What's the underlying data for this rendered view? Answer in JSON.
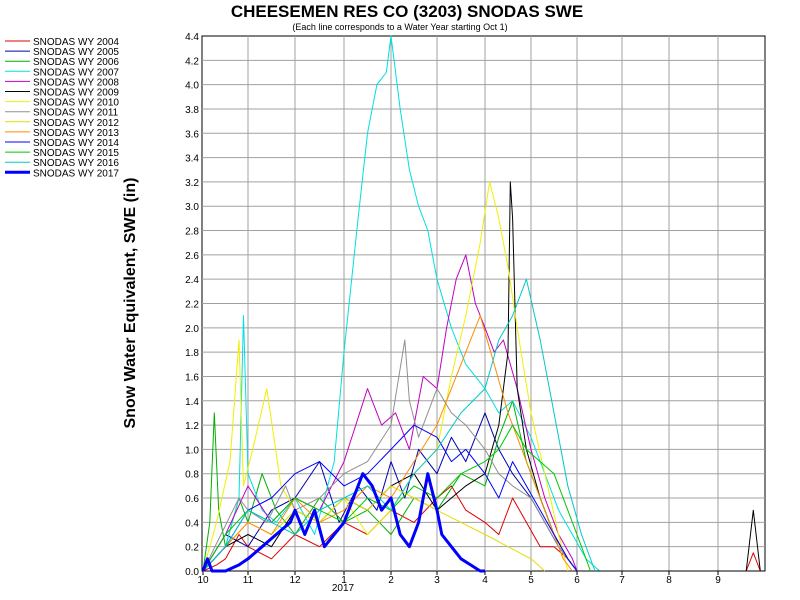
{
  "chart_data": {
    "type": "line",
    "title": "CHEESEMEN RES CO (3203) SNODAS SWE",
    "subtitle": "(Each line corresponds to a Water Year starting Oct 1)",
    "xlabel": "",
    "ylabel": "Snow Water Equivalent, SWE (in)",
    "x_tick_labels": [
      "10",
      "11",
      "12",
      "1",
      "2",
      "3",
      "4",
      "5",
      "6",
      "7",
      "8",
      "9"
    ],
    "x_year_label": "2017",
    "ylim": [
      0,
      4.4
    ],
    "y_ticks": [
      0.0,
      0.2,
      0.4,
      0.6,
      0.8,
      1.0,
      1.2,
      1.4,
      1.6,
      1.8,
      2.0,
      2.2,
      2.4,
      2.6,
      2.8,
      3.0,
      3.2,
      3.4,
      3.6,
      3.8,
      4.0,
      4.2,
      4.4
    ],
    "grid": true,
    "legend_position": "left",
    "series": [
      {
        "name": "SNODAS WY 2004",
        "color": "#e00000",
        "width": 1,
        "x": [
          10.0,
          10.3,
          10.5,
          10.8,
          11.0,
          11.5,
          12.0,
          12.5,
          1.0,
          1.5,
          2.0,
          2.5,
          3.0,
          3.3,
          3.6,
          4.0,
          4.3,
          4.6,
          4.9,
          5.2,
          5.5,
          5.8,
          6.0,
          9.6,
          9.75,
          9.9
        ],
        "y": [
          0,
          0.05,
          0.1,
          0.3,
          0.2,
          0.1,
          0.3,
          0.2,
          0.4,
          0.3,
          0.5,
          0.4,
          0.6,
          0.7,
          0.5,
          0.4,
          0.3,
          0.6,
          0.4,
          0.2,
          0.2,
          0.1,
          0,
          0,
          0.15,
          0
        ]
      },
      {
        "name": "SNODAS WY 2005",
        "color": "#0000b0",
        "width": 1,
        "x": [
          10.0,
          10.5,
          11.0,
          11.5,
          12.0,
          12.5,
          12.9,
          1.3,
          1.7,
          2.0,
          2.3,
          2.6,
          3.0,
          3.3,
          3.6,
          4.0,
          4.3,
          4.6,
          5.0,
          5.3,
          5.6,
          5.9,
          6.0
        ],
        "y": [
          0,
          0.3,
          0.2,
          0.5,
          0.6,
          0.9,
          0.4,
          0.7,
          0.5,
          0.9,
          0.6,
          1.0,
          0.8,
          1.1,
          0.9,
          1.3,
          1.0,
          0.8,
          0.6,
          0.4,
          0.2,
          0.05,
          0
        ]
      },
      {
        "name": "SNODAS WY 2006",
        "color": "#00b000",
        "width": 1,
        "x": [
          10.0,
          10.15,
          10.25,
          10.35,
          10.5,
          10.8,
          11.0,
          11.3,
          11.6,
          12.0,
          12.5,
          1.0,
          1.5,
          2.0,
          2.5,
          3.0,
          3.5,
          4.0,
          4.3,
          4.6,
          4.9,
          5.2,
          5.5,
          5.8,
          6.0
        ],
        "y": [
          0,
          0.4,
          1.3,
          0.5,
          0.2,
          0.6,
          0.4,
          0.8,
          0.5,
          0.3,
          0.6,
          0.4,
          0.5,
          0.3,
          0.6,
          0.5,
          0.8,
          0.7,
          1.1,
          1.4,
          0.9,
          0.6,
          0.3,
          0.1,
          0
        ]
      },
      {
        "name": "SNODAS WY 2007",
        "color": "#00e0e0",
        "width": 1,
        "x": [
          10.0,
          10.5,
          10.8,
          10.9,
          11.0,
          11.3,
          11.6,
          12.0,
          12.4,
          12.8,
          1.0,
          1.3,
          1.5,
          1.7,
          1.9,
          2.0,
          2.2,
          2.4,
          2.6,
          2.8,
          3.0,
          3.3,
          3.6,
          4.0,
          4.3,
          4.6,
          5.0,
          5.3,
          5.6,
          5.9,
          6.2,
          6.5
        ],
        "y": [
          0,
          0.2,
          0.6,
          2.1,
          0.8,
          0.5,
          0.4,
          0.6,
          0.3,
          0.9,
          1.8,
          2.9,
          3.6,
          4.0,
          4.1,
          4.4,
          3.8,
          3.3,
          3.0,
          2.8,
          2.4,
          2.0,
          1.7,
          1.5,
          1.3,
          1.4,
          1.1,
          0.8,
          0.5,
          0.3,
          0.1,
          0
        ]
      },
      {
        "name": "SNODAS WY 2008",
        "color": "#c000c0",
        "width": 1,
        "x": [
          10.0,
          10.5,
          11.0,
          11.5,
          12.0,
          12.5,
          1.0,
          1.5,
          1.8,
          2.1,
          2.4,
          2.7,
          3.0,
          3.2,
          3.4,
          3.6,
          3.8,
          4.0,
          4.2,
          4.4,
          4.7,
          5.0,
          5.3,
          5.6,
          5.9,
          6.0
        ],
        "y": [
          0,
          0.3,
          0.7,
          0.4,
          0.6,
          0.5,
          0.9,
          1.5,
          1.2,
          1.3,
          1.0,
          1.6,
          1.5,
          2.0,
          2.4,
          2.6,
          2.2,
          2.0,
          1.8,
          1.9,
          1.5,
          1.0,
          0.6,
          0.3,
          0.1,
          0
        ]
      },
      {
        "name": "SNODAS WY 2009",
        "color": "#000000",
        "width": 1,
        "x": [
          10.0,
          10.5,
          11.0,
          11.5,
          12.0,
          12.5,
          1.0,
          1.5,
          2.0,
          2.5,
          3.0,
          3.3,
          3.6,
          4.0,
          4.3,
          4.5,
          4.55,
          4.6,
          4.7,
          4.9,
          5.2,
          5.5,
          5.8,
          6.0,
          9.6,
          9.75,
          9.9
        ],
        "y": [
          0,
          0.2,
          0.3,
          0.2,
          0.5,
          0.4,
          0.6,
          0.5,
          0.7,
          0.8,
          0.5,
          0.6,
          0.7,
          0.8,
          1.2,
          1.8,
          3.2,
          2.9,
          1.5,
          1.0,
          0.6,
          0.3,
          0.1,
          0,
          0,
          0.5,
          0
        ]
      },
      {
        "name": "SNODAS WY 2010",
        "color": "#f0f000",
        "width": 1,
        "x": [
          10.0,
          10.3,
          10.6,
          10.8,
          10.9,
          11.1,
          11.4,
          11.7,
          12.0,
          12.5,
          1.0,
          1.5,
          2.0,
          2.5,
          3.0,
          3.3,
          3.6,
          3.9,
          4.1,
          4.3,
          4.5,
          4.7,
          5.0,
          5.3,
          5.6,
          5.8
        ],
        "y": [
          0,
          0.4,
          0.9,
          1.9,
          0.7,
          1.0,
          1.5,
          0.7,
          0.5,
          0.4,
          0.6,
          0.3,
          0.5,
          0.8,
          1.0,
          1.6,
          2.1,
          2.7,
          3.2,
          2.9,
          2.5,
          2.0,
          1.3,
          0.8,
          0.3,
          0
        ]
      },
      {
        "name": "SNODAS WY 2011",
        "color": "#909090",
        "width": 1,
        "x": [
          10.0,
          10.4,
          10.8,
          11.0,
          11.4,
          11.8,
          12.0,
          12.5,
          1.0,
          1.5,
          2.0,
          2.3,
          2.4,
          2.6,
          3.0,
          3.3,
          3.6,
          4.0,
          4.3,
          4.6,
          5.0,
          5.3,
          5.6,
          5.9,
          6.0
        ],
        "y": [
          0,
          0.3,
          0.6,
          0.5,
          0.4,
          0.7,
          0.5,
          0.6,
          0.8,
          0.9,
          1.2,
          1.9,
          1.4,
          1.1,
          1.5,
          1.3,
          1.2,
          1.0,
          0.8,
          0.7,
          0.6,
          0.4,
          0.2,
          0.05,
          0
        ]
      },
      {
        "name": "SNODAS WY 2012",
        "color": "#e0e000",
        "width": 1,
        "x": [
          10.0,
          10.5,
          11.0,
          11.5,
          12.0,
          12.5,
          1.0,
          1.5,
          2.0,
          2.5,
          3.0,
          3.5,
          4.0,
          4.5,
          5.0,
          5.3
        ],
        "y": [
          0,
          0.2,
          0.4,
          0.3,
          0.5,
          0.4,
          0.6,
          0.5,
          0.7,
          0.6,
          0.5,
          0.4,
          0.3,
          0.2,
          0.1,
          0
        ]
      },
      {
        "name": "SNODAS WY 2013",
        "color": "#ff8c00",
        "width": 1,
        "x": [
          10.0,
          10.5,
          11.0,
          11.5,
          12.0,
          12.5,
          1.0,
          1.5,
          2.0,
          2.5,
          3.0,
          3.3,
          3.6,
          3.9,
          4.2,
          4.5,
          4.8,
          5.1,
          5.4,
          5.7,
          5.9
        ],
        "y": [
          0,
          0.2,
          0.4,
          0.3,
          0.6,
          0.4,
          0.5,
          0.7,
          0.6,
          0.9,
          1.2,
          1.5,
          1.8,
          2.1,
          1.7,
          1.3,
          1.0,
          0.7,
          0.4,
          0.1,
          0
        ]
      },
      {
        "name": "SNODAS WY 2014",
        "color": "#0000ff",
        "width": 1,
        "x": [
          10.0,
          10.5,
          11.0,
          11.5,
          12.0,
          12.5,
          1.0,
          1.5,
          2.0,
          2.5,
          3.0,
          3.3,
          3.6,
          4.0,
          4.3,
          4.6,
          4.9,
          5.2,
          5.5,
          5.8,
          6.0
        ],
        "y": [
          0,
          0.2,
          0.5,
          0.6,
          0.8,
          0.9,
          0.7,
          0.8,
          1.0,
          1.2,
          1.1,
          0.9,
          1.0,
          0.8,
          0.6,
          0.9,
          0.7,
          0.5,
          0.3,
          0.1,
          0
        ]
      },
      {
        "name": "SNODAS WY 2015",
        "color": "#00c800",
        "width": 1,
        "x": [
          10.0,
          10.5,
          11.0,
          11.5,
          12.0,
          12.5,
          1.0,
          1.5,
          2.0,
          2.5,
          3.0,
          3.5,
          4.0,
          4.3,
          4.6,
          4.9,
          5.2,
          5.5,
          5.8,
          6.1,
          6.3
        ],
        "y": [
          0,
          0.3,
          0.5,
          0.4,
          0.6,
          0.5,
          0.4,
          0.6,
          0.5,
          0.7,
          0.6,
          0.8,
          0.9,
          1.0,
          1.2,
          1.0,
          0.9,
          0.8,
          0.5,
          0.2,
          0
        ]
      },
      {
        "name": "SNODAS WY 2016",
        "color": "#00c8c8",
        "width": 1,
        "x": [
          10.0,
          10.5,
          11.0,
          11.5,
          12.0,
          12.5,
          1.0,
          1.5,
          2.0,
          2.5,
          3.0,
          3.5,
          4.0,
          4.3,
          4.6,
          4.9,
          5.2,
          5.5,
          5.8,
          6.1,
          6.4
        ],
        "y": [
          0,
          0.2,
          0.5,
          0.4,
          0.3,
          0.5,
          0.6,
          0.7,
          0.5,
          0.8,
          1.0,
          1.3,
          1.5,
          1.9,
          2.1,
          2.4,
          1.9,
          1.3,
          0.7,
          0.3,
          0
        ]
      },
      {
        "name": "SNODAS WY 2017",
        "color": "#0000ff",
        "width": 3,
        "x": [
          10.0,
          10.1,
          10.2,
          10.3,
          10.5,
          10.8,
          11.0,
          11.3,
          11.6,
          11.9,
          12.0,
          12.2,
          12.4,
          12.6,
          12.8,
          1.0,
          1.2,
          1.4,
          1.6,
          1.8,
          2.0,
          2.2,
          2.4,
          2.6,
          2.8,
          3.0,
          3.1,
          3.3,
          3.5,
          3.7,
          3.9,
          4.0
        ],
        "y": [
          0,
          0.1,
          0,
          0,
          0,
          0.05,
          0.1,
          0.2,
          0.3,
          0.4,
          0.5,
          0.3,
          0.5,
          0.2,
          0.3,
          0.4,
          0.6,
          0.8,
          0.7,
          0.5,
          0.6,
          0.3,
          0.2,
          0.4,
          0.8,
          0.5,
          0.3,
          0.2,
          0.1,
          0.05,
          0,
          0
        ]
      }
    ]
  }
}
